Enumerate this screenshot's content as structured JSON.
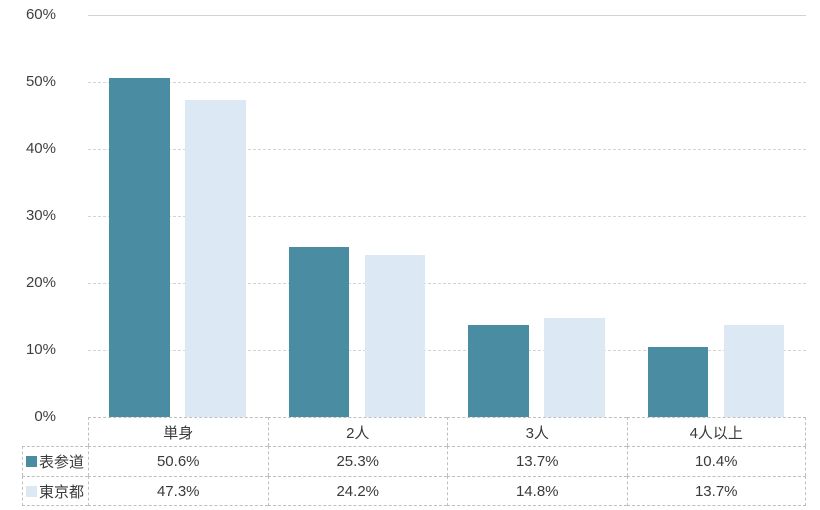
{
  "chart_data": {
    "type": "bar",
    "title": "",
    "xlabel": "",
    "ylabel": "",
    "categories": [
      "単身",
      "2人",
      "3人",
      "4人以上"
    ],
    "series": [
      {
        "name": "表参道",
        "color": "#4A8CA2",
        "values": [
          50.6,
          25.3,
          13.7,
          10.4
        ],
        "value_labels": [
          "50.6%",
          "25.3%",
          "13.7%",
          "10.4%"
        ]
      },
      {
        "name": "東京都",
        "color": "#DCE8F4",
        "values": [
          47.3,
          24.2,
          14.8,
          13.7
        ],
        "value_labels": [
          "47.3%",
          "24.2%",
          "14.8%",
          "13.7%"
        ]
      }
    ],
    "ylim": [
      0,
      60
    ],
    "ytick_step": 10,
    "ytick_labels": [
      "0%",
      "10%",
      "20%",
      "30%",
      "40%",
      "50%",
      "60%"
    ],
    "grid": "horizontal-dashed",
    "legend_position": "data-table-left-column",
    "colors": {
      "gridline": "#D4D4D4",
      "table_border": "#BFBFBF",
      "text": "#3A3A3A",
      "background": "#FFFFFF"
    }
  }
}
